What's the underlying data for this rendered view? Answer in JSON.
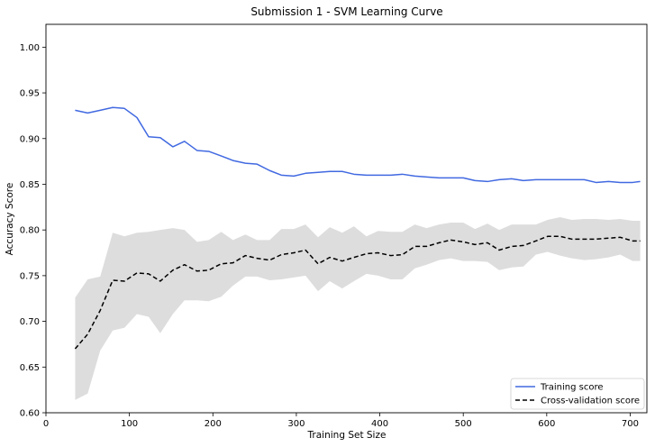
{
  "chart_data": {
    "type": "line",
    "title": "Submission 1 - SVM Learning Curve",
    "xlabel": "Training Set Size",
    "ylabel": "Accuracy Score",
    "xlim": [
      0,
      720
    ],
    "ylim": [
      0.6,
      1.025
    ],
    "xticks": [
      0,
      100,
      200,
      300,
      400,
      500,
      600,
      700
    ],
    "yticks": [
      0.6,
      0.65,
      0.7,
      0.75,
      0.8,
      0.85,
      0.9,
      0.95,
      1.0
    ],
    "ytick_labels": [
      "0.60",
      "0.65",
      "0.70",
      "0.75",
      "0.80",
      "0.85",
      "0.90",
      "0.95",
      "1.00"
    ],
    "grid": false,
    "legend_position": "bottom-right",
    "x": [
      35,
      50,
      65,
      80,
      94,
      109,
      123,
      137,
      152,
      166,
      181,
      195,
      210,
      224,
      239,
      253,
      268,
      282,
      297,
      311,
      326,
      340,
      355,
      369,
      384,
      398,
      413,
      427,
      442,
      456,
      471,
      485,
      500,
      514,
      529,
      543,
      558,
      572,
      587,
      601,
      616,
      630,
      645,
      659,
      674,
      688,
      703,
      712
    ],
    "series": [
      {
        "name": "Training score",
        "color": "#4169e1",
        "style": "solid",
        "values": [
          0.931,
          0.928,
          0.931,
          0.934,
          0.933,
          0.923,
          0.902,
          0.901,
          0.891,
          0.897,
          0.887,
          0.886,
          0.881,
          0.876,
          0.873,
          0.872,
          0.865,
          0.86,
          0.859,
          0.862,
          0.863,
          0.864,
          0.864,
          0.861,
          0.86,
          0.86,
          0.86,
          0.861,
          0.859,
          0.858,
          0.857,
          0.857,
          0.857,
          0.854,
          0.853,
          0.855,
          0.856,
          0.854,
          0.855,
          0.855,
          0.855,
          0.855,
          0.855,
          0.852,
          0.853,
          0.852,
          0.852,
          0.853
        ]
      },
      {
        "name": "Cross-validation score",
        "color": "#000000",
        "style": "dashed",
        "values": [
          0.67,
          0.686,
          0.712,
          0.745,
          0.744,
          0.753,
          0.752,
          0.744,
          0.756,
          0.762,
          0.755,
          0.756,
          0.763,
          0.764,
          0.772,
          0.769,
          0.767,
          0.773,
          0.775,
          0.778,
          0.763,
          0.77,
          0.766,
          0.77,
          0.774,
          0.775,
          0.772,
          0.773,
          0.782,
          0.782,
          0.786,
          0.789,
          0.787,
          0.784,
          0.786,
          0.778,
          0.782,
          0.783,
          0.788,
          0.793,
          0.793,
          0.79,
          0.79,
          0.79,
          0.791,
          0.792,
          0.788,
          0.788
        ],
        "band_upper": [
          0.726,
          0.746,
          0.749,
          0.797,
          0.793,
          0.797,
          0.798,
          0.8,
          0.802,
          0.8,
          0.787,
          0.789,
          0.798,
          0.789,
          0.795,
          0.789,
          0.789,
          0.801,
          0.801,
          0.806,
          0.792,
          0.803,
          0.797,
          0.804,
          0.793,
          0.799,
          0.798,
          0.798,
          0.806,
          0.802,
          0.806,
          0.808,
          0.808,
          0.801,
          0.807,
          0.8,
          0.806,
          0.806,
          0.806,
          0.811,
          0.814,
          0.811,
          0.812,
          0.812,
          0.811,
          0.812,
          0.81,
          0.81
        ],
        "band_lower": [
          0.614,
          0.621,
          0.668,
          0.69,
          0.693,
          0.708,
          0.705,
          0.687,
          0.708,
          0.723,
          0.723,
          0.722,
          0.727,
          0.739,
          0.749,
          0.749,
          0.745,
          0.746,
          0.748,
          0.75,
          0.733,
          0.744,
          0.736,
          0.744,
          0.752,
          0.75,
          0.746,
          0.746,
          0.758,
          0.762,
          0.767,
          0.769,
          0.766,
          0.766,
          0.765,
          0.756,
          0.759,
          0.76,
          0.773,
          0.776,
          0.772,
          0.769,
          0.767,
          0.768,
          0.77,
          0.773,
          0.766,
          0.766
        ]
      }
    ]
  }
}
